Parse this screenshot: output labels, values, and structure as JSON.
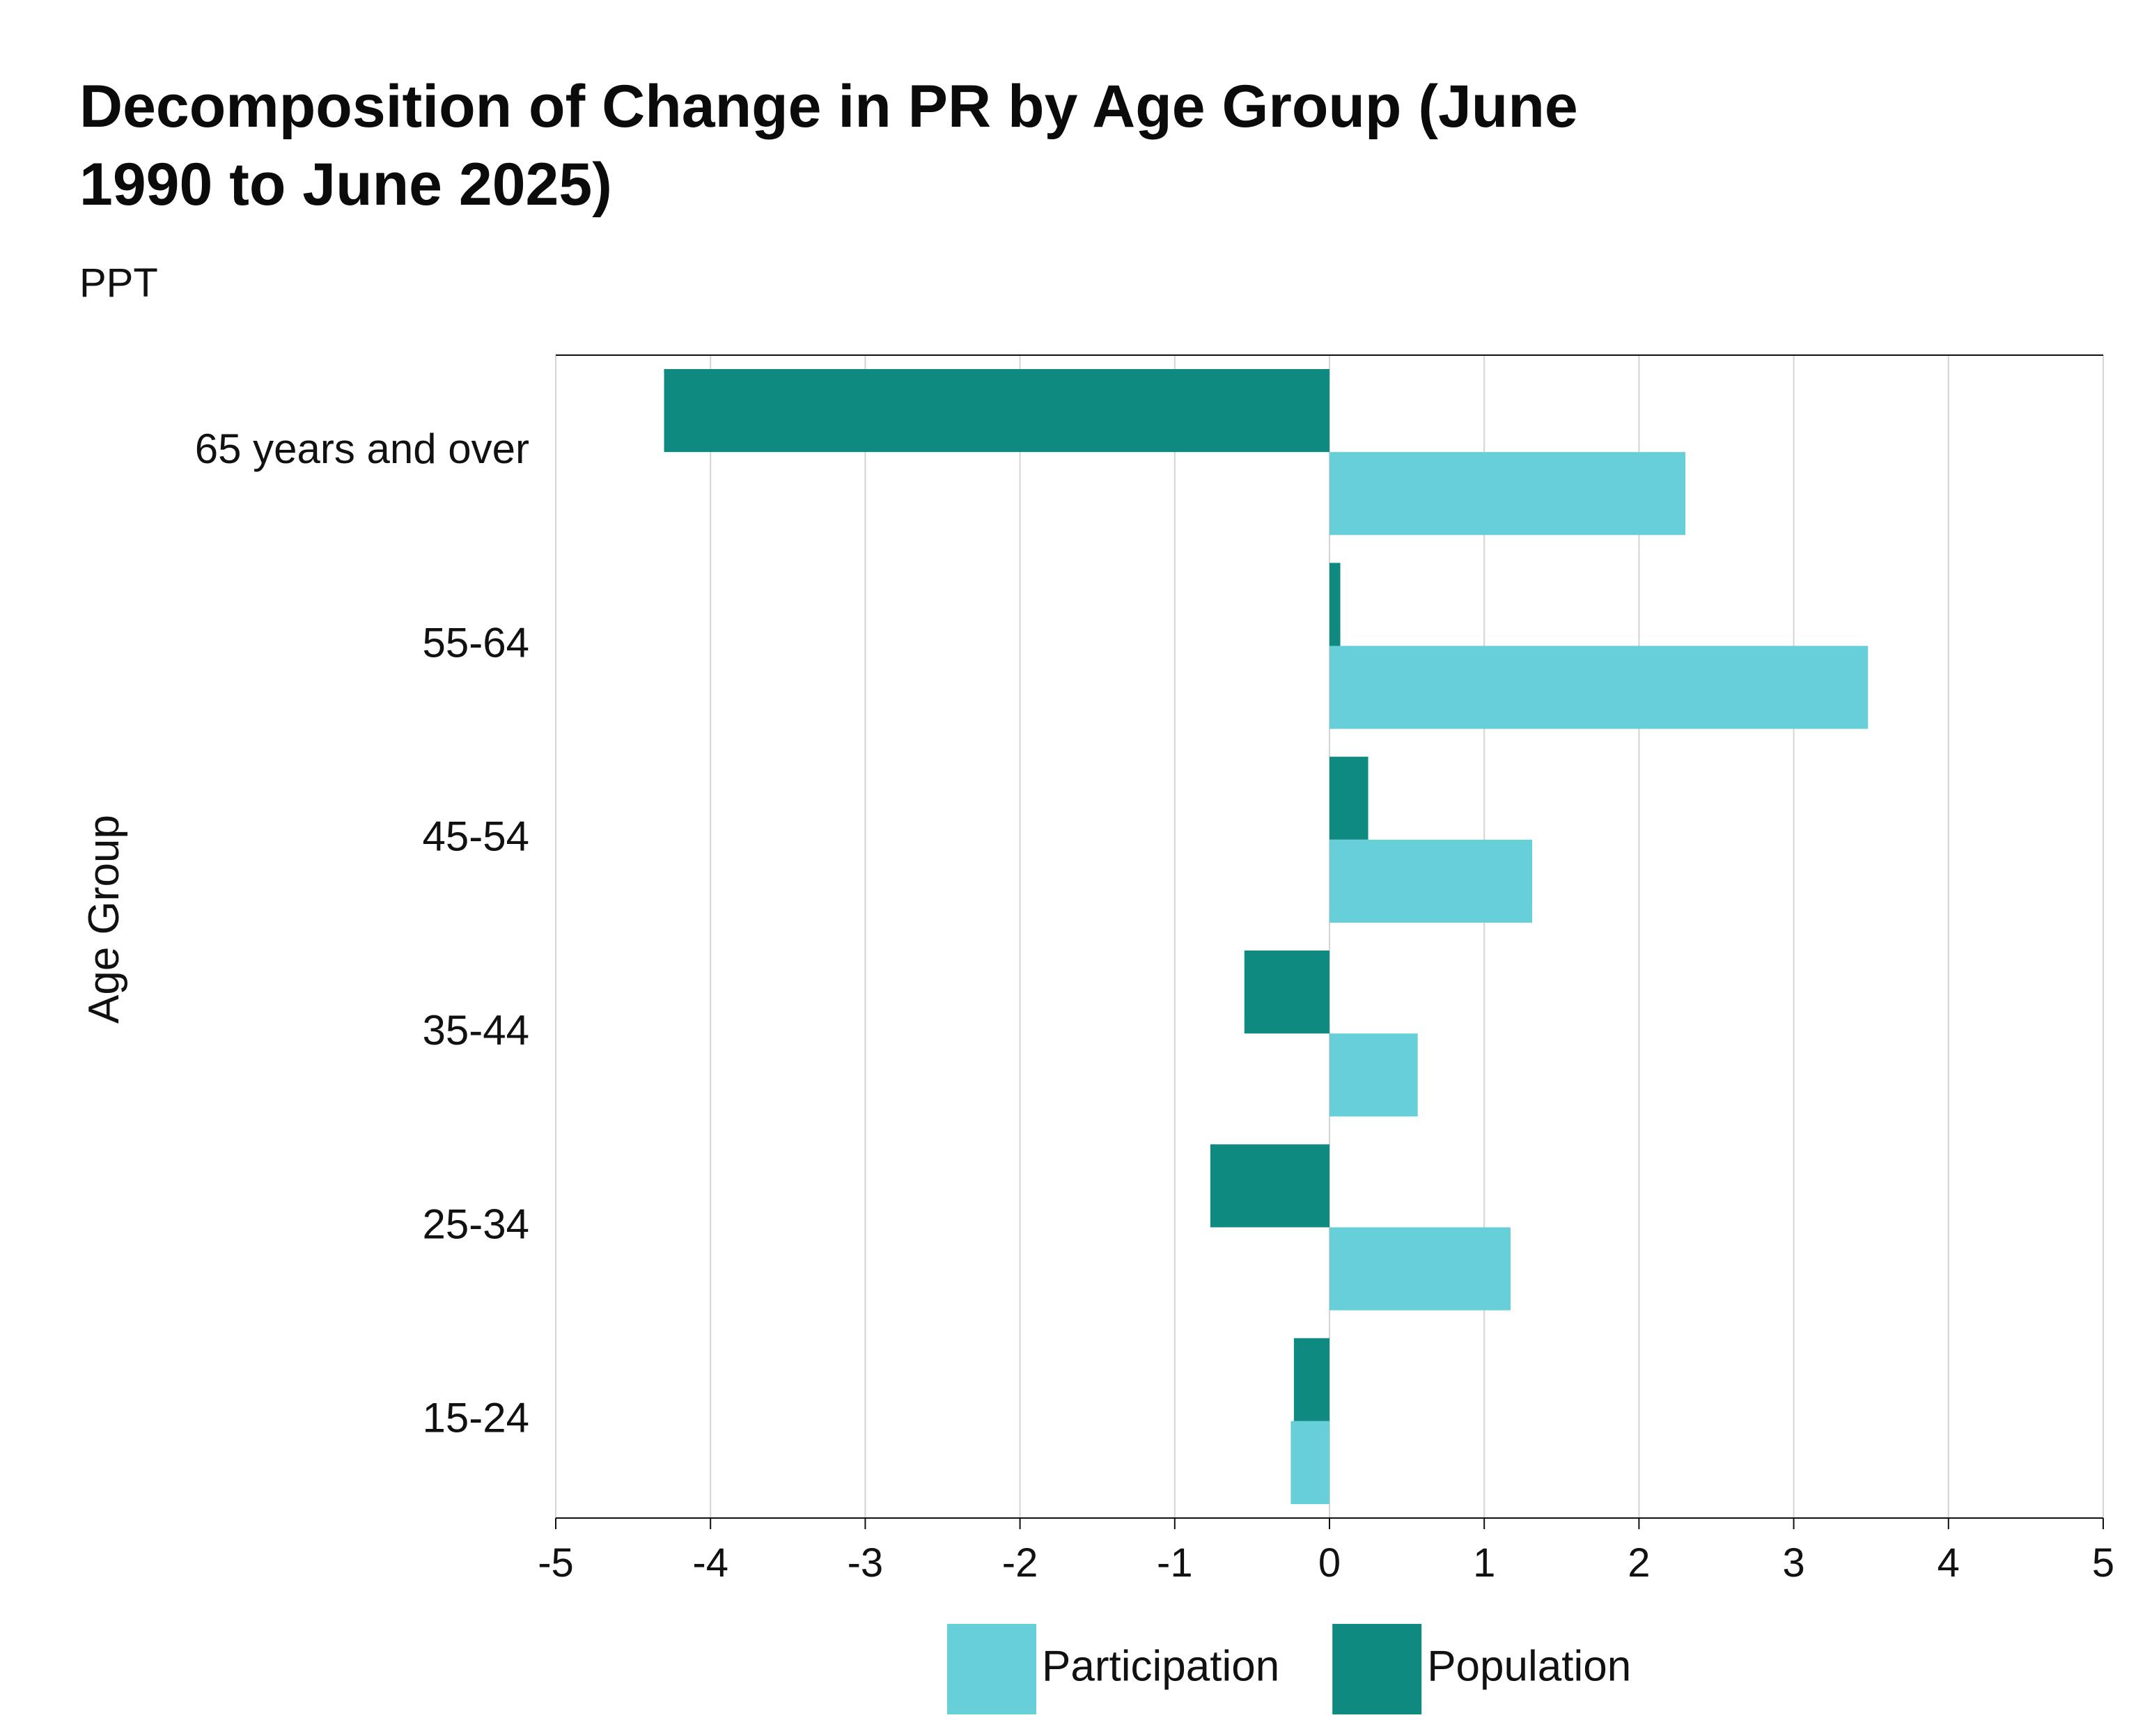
{
  "chart_data": {
    "type": "bar",
    "orientation": "horizontal",
    "title_lines": [
      "Decomposition of Change in PR by Age Group (June",
      "1990 to June 2025)"
    ],
    "subtitle": "PPT",
    "ylabel": "Age Group",
    "xlabel": "",
    "categories": [
      "65 years and over",
      "55-64",
      "45-54",
      "35-44",
      "25-34",
      "15-24"
    ],
    "series": [
      {
        "name": "Population",
        "color": "#0e8a80",
        "values": [
          -4.3,
          0.07,
          0.25,
          -0.55,
          -0.77,
          -0.23
        ]
      },
      {
        "name": "Participation",
        "color": "#67cfd8",
        "values": [
          2.3,
          3.48,
          1.31,
          0.57,
          1.17,
          -0.25
        ]
      }
    ],
    "xlim": [
      -5,
      5
    ],
    "xticks": [
      -5,
      -4,
      -3,
      -2,
      -1,
      0,
      1,
      2,
      3,
      4,
      5
    ],
    "grid": "vertical",
    "legend": {
      "position": "bottom-center",
      "entries": [
        "Participation",
        "Population"
      ]
    }
  }
}
